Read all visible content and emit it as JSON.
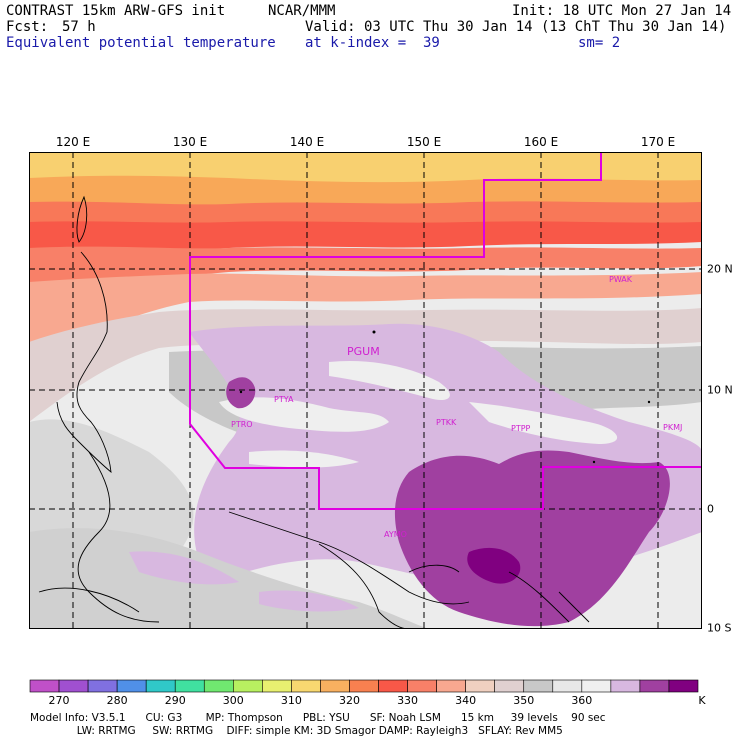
{
  "header": {
    "model": "CONTRAST 15km ARW-GFS init",
    "org": "NCAR/MMM",
    "init": "Init: 18 UTC Mon 27 Jan 14",
    "fcst_label": "Fcst:",
    "fcst_value": "57 h",
    "valid": "Valid: 03 UTC Thu 30 Jan 14 (13 ChT Thu 30 Jan 14)",
    "field": "Equivalent potential temperature",
    "level": "at k-index =  39",
    "smooth": "sm= 2"
  },
  "map": {
    "lon_labels": [
      "120 E",
      "130 E",
      "140 E",
      "150 E",
      "160 E",
      "170 E"
    ],
    "lat_labels": [
      "20 N",
      "10 N",
      "0",
      "10 S"
    ],
    "stations": [
      "PGUM",
      "PTYA",
      "PTRO",
      "PTKK",
      "PTPP",
      "PKMJ",
      "PWAK",
      "AYMO"
    ]
  },
  "colorbar": {
    "labels": [
      "270",
      "280",
      "290",
      "300",
      "310",
      "320",
      "330",
      "340",
      "350",
      "360"
    ],
    "unit": "K",
    "colors": [
      "#c050c8",
      "#a050d0",
      "#8070e0",
      "#5090e8",
      "#30c8c8",
      "#40e0a0",
      "#70e870",
      "#b8f060",
      "#e8f070",
      "#f8d870",
      "#f8b060",
      "#f88050",
      "#f85848",
      "#f88068",
      "#f8a890",
      "#f0d0c0",
      "#e0d0d0",
      "#c8c8c8",
      "#e8e8e8",
      "#f0f0f0",
      "#d8b8e0",
      "#a040a0",
      "#800080"
    ]
  },
  "footer": {
    "line1": "Model Info: V3.5.1      CU: G3       MP: Thompson      PBL: YSU      SF: Noah LSM      15 km     39 levels    90 sec",
    "line2": "              LW: RRTMG     SW: RRTMG    DIFF: simple KM: 3D Smagor DAMP: Rayleigh3   SFLAY: Rev MM5"
  },
  "colors": {
    "boundary": "#e000e0",
    "station": "#d020d0",
    "field_label": "#1a1aaa"
  }
}
